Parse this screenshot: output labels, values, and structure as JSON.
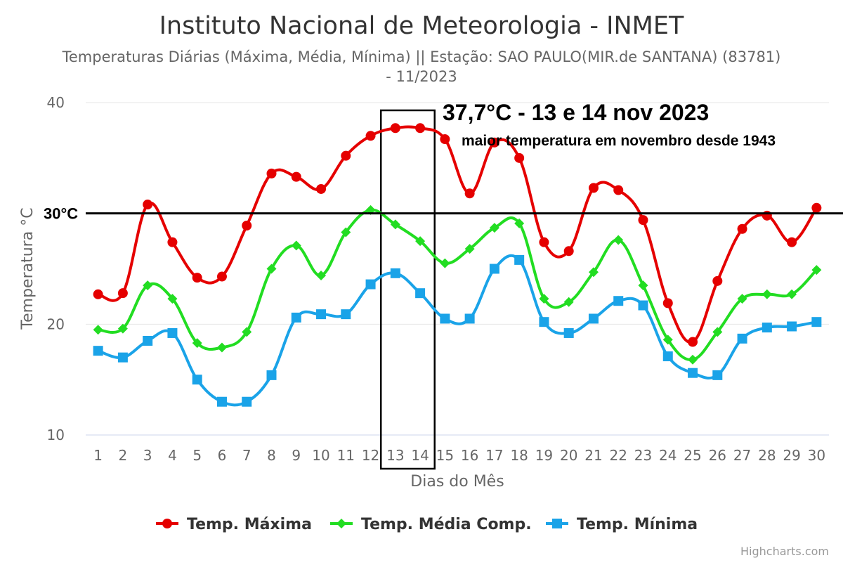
{
  "chart_data": {
    "type": "line",
    "title": "Instituto Nacional de Meteorologia - INMET",
    "subtitle_line1": "Temperaturas Diárias (Máxima, Média, Mínima) || Estação: SAO PAULO(MIR.de SANTANA) (83781)",
    "subtitle_line2": "- 11/2023",
    "xlabel": "Dias do Mês",
    "ylabel": "Temperatura °C",
    "ylim": [
      10,
      40
    ],
    "yticks": [
      "10",
      "20",
      "40"
    ],
    "grid": true,
    "categories": [
      "1",
      "2",
      "3",
      "4",
      "5",
      "6",
      "7",
      "8",
      "9",
      "10",
      "11",
      "12",
      "13",
      "14",
      "15",
      "16",
      "17",
      "18",
      "19",
      "20",
      "21",
      "22",
      "23",
      "24",
      "25",
      "26",
      "27",
      "28",
      "29",
      "30"
    ],
    "series": [
      {
        "name": "Temp. Máxima",
        "color": "#e50000",
        "marker": "circle",
        "values": [
          22.7,
          22.8,
          30.8,
          27.4,
          24.2,
          24.3,
          28.9,
          33.6,
          33.3,
          32.2,
          35.2,
          37.0,
          37.7,
          37.7,
          36.7,
          31.8,
          36.4,
          35.0,
          27.4,
          26.6,
          32.3,
          32.1,
          29.4,
          21.9,
          18.4,
          23.9,
          28.6,
          29.8,
          27.4,
          30.5
        ]
      },
      {
        "name": "Temp. Média Comp.",
        "color": "#22dd22",
        "marker": "diamond",
        "values": [
          19.5,
          19.6,
          23.5,
          22.3,
          18.3,
          17.9,
          19.3,
          25.0,
          27.1,
          24.4,
          28.3,
          30.3,
          29.0,
          27.5,
          25.5,
          26.8,
          28.7,
          29.1,
          22.3,
          22.0,
          24.7,
          27.6,
          23.5,
          18.6,
          16.8,
          19.3,
          22.3,
          22.7,
          22.7,
          24.9
        ]
      },
      {
        "name": "Temp. Mínima",
        "color": "#1aa3e8",
        "marker": "square",
        "values": [
          17.6,
          17.0,
          18.5,
          19.2,
          15.0,
          13.0,
          13.0,
          15.4,
          20.6,
          20.9,
          20.9,
          23.6,
          24.6,
          22.8,
          20.5,
          20.5,
          25.0,
          25.8,
          20.2,
          19.2,
          20.5,
          22.1,
          21.7,
          17.1,
          15.6,
          15.4,
          18.7,
          19.7,
          19.8,
          20.2
        ]
      }
    ],
    "reference_line": {
      "value": 30,
      "label": "30°C",
      "color": "#000000"
    },
    "highlight": {
      "from_category": "13",
      "to_category": "14"
    },
    "annotations": {
      "headline": "37,7°C - 13 e 14 nov 2023",
      "note": "maior temperatura em novembro desde 1943"
    },
    "legend_placement": "bottom-center",
    "credits": "Highcharts.com"
  }
}
